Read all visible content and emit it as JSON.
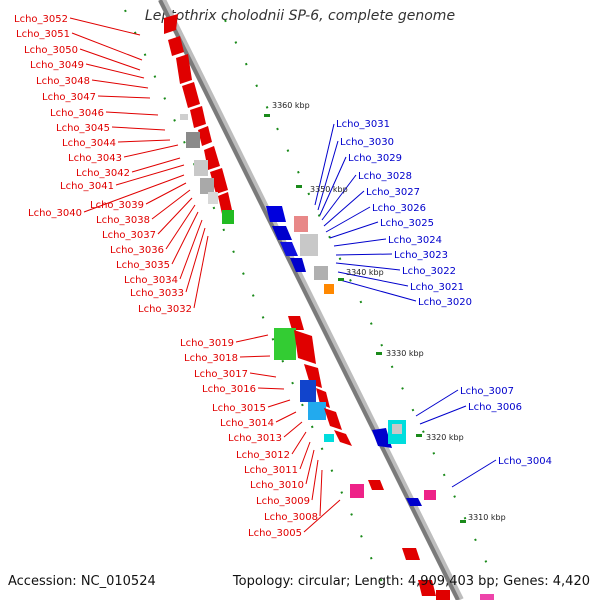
{
  "title": "Leptothrix cholodnii SP-6, complete genome",
  "footer": {
    "accession": "Accession: NC_010524",
    "topology": "Topology: circular; Length: 4,909,403 bp; Genes: 4,420"
  },
  "colors": {
    "left_labels": "#e00000",
    "right_labels": "#0000cc",
    "backbone": "#888888",
    "tick": "#1a8a1a"
  },
  "ticks": [
    "3360 kbp",
    "3350 kbp",
    "3340 kbp",
    "3330 kbp",
    "3320 kbp",
    "3310 kbp"
  ],
  "left_genes": [
    "Lcho_3052",
    "Lcho_3051",
    "Lcho_3050",
    "Lcho_3049",
    "Lcho_3048",
    "Lcho_3047",
    "Lcho_3046",
    "Lcho_3045",
    "Lcho_3044",
    "Lcho_3043",
    "Lcho_3042",
    "Lcho_3041",
    "Lcho_3040",
    "Lcho_3039",
    "Lcho_3038",
    "Lcho_3037",
    "Lcho_3036",
    "Lcho_3035",
    "Lcho_3034",
    "Lcho_3033",
    "Lcho_3032",
    "Lcho_3019",
    "Lcho_3018",
    "Lcho_3017",
    "Lcho_3016",
    "Lcho_3015",
    "Lcho_3014",
    "Lcho_3013",
    "Lcho_3012",
    "Lcho_3011",
    "Lcho_3010",
    "Lcho_3009",
    "Lcho_3008",
    "Lcho_3005"
  ],
  "right_genes": [
    "Lcho_3031",
    "Lcho_3030",
    "Lcho_3029",
    "Lcho_3028",
    "Lcho_3027",
    "Lcho_3026",
    "Lcho_3025",
    "Lcho_3024",
    "Lcho_3023",
    "Lcho_3022",
    "Lcho_3021",
    "Lcho_3020",
    "Lcho_3007",
    "Lcho_3006",
    "Lcho_3004"
  ]
}
